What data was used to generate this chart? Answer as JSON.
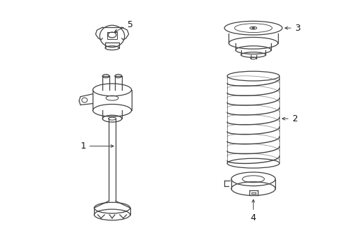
{
  "background_color": "#ffffff",
  "line_color": "#404040",
  "label_color": "#111111",
  "fig_width": 4.89,
  "fig_height": 3.6,
  "dpi": 100
}
